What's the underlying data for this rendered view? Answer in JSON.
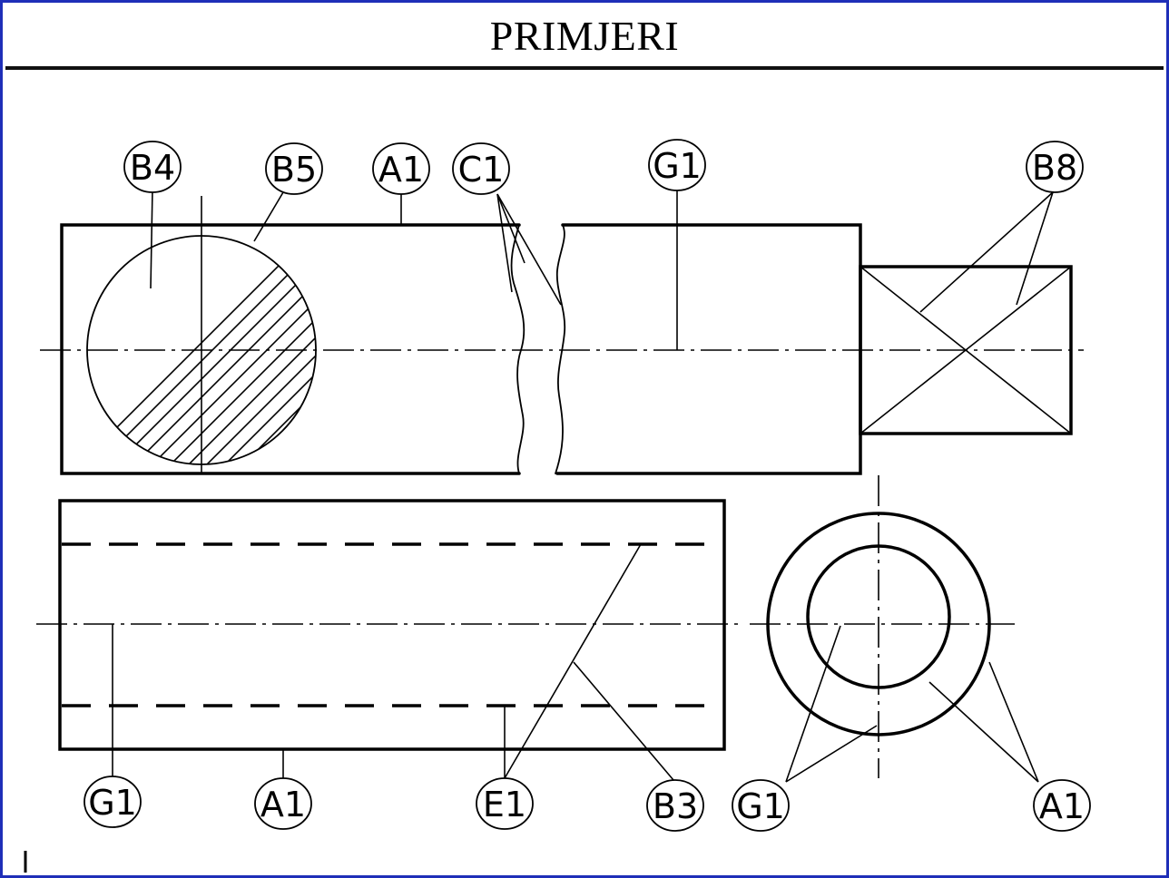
{
  "title": "PRIMJERI",
  "labels": {
    "top_b4": "B4",
    "top_b5": "B5",
    "top_a1": "A1",
    "top_c1": "C1",
    "top_g1": "G1",
    "top_b8": "B8",
    "bottom_g1_left": "G1",
    "bottom_a1_left": "A1",
    "bottom_e1": "E1",
    "bottom_b3": "B3",
    "bottom_g1_right": "G1",
    "bottom_a1_right": "A1"
  },
  "colors": {
    "frame_border": "#1f2fb8",
    "line": "#000000"
  }
}
